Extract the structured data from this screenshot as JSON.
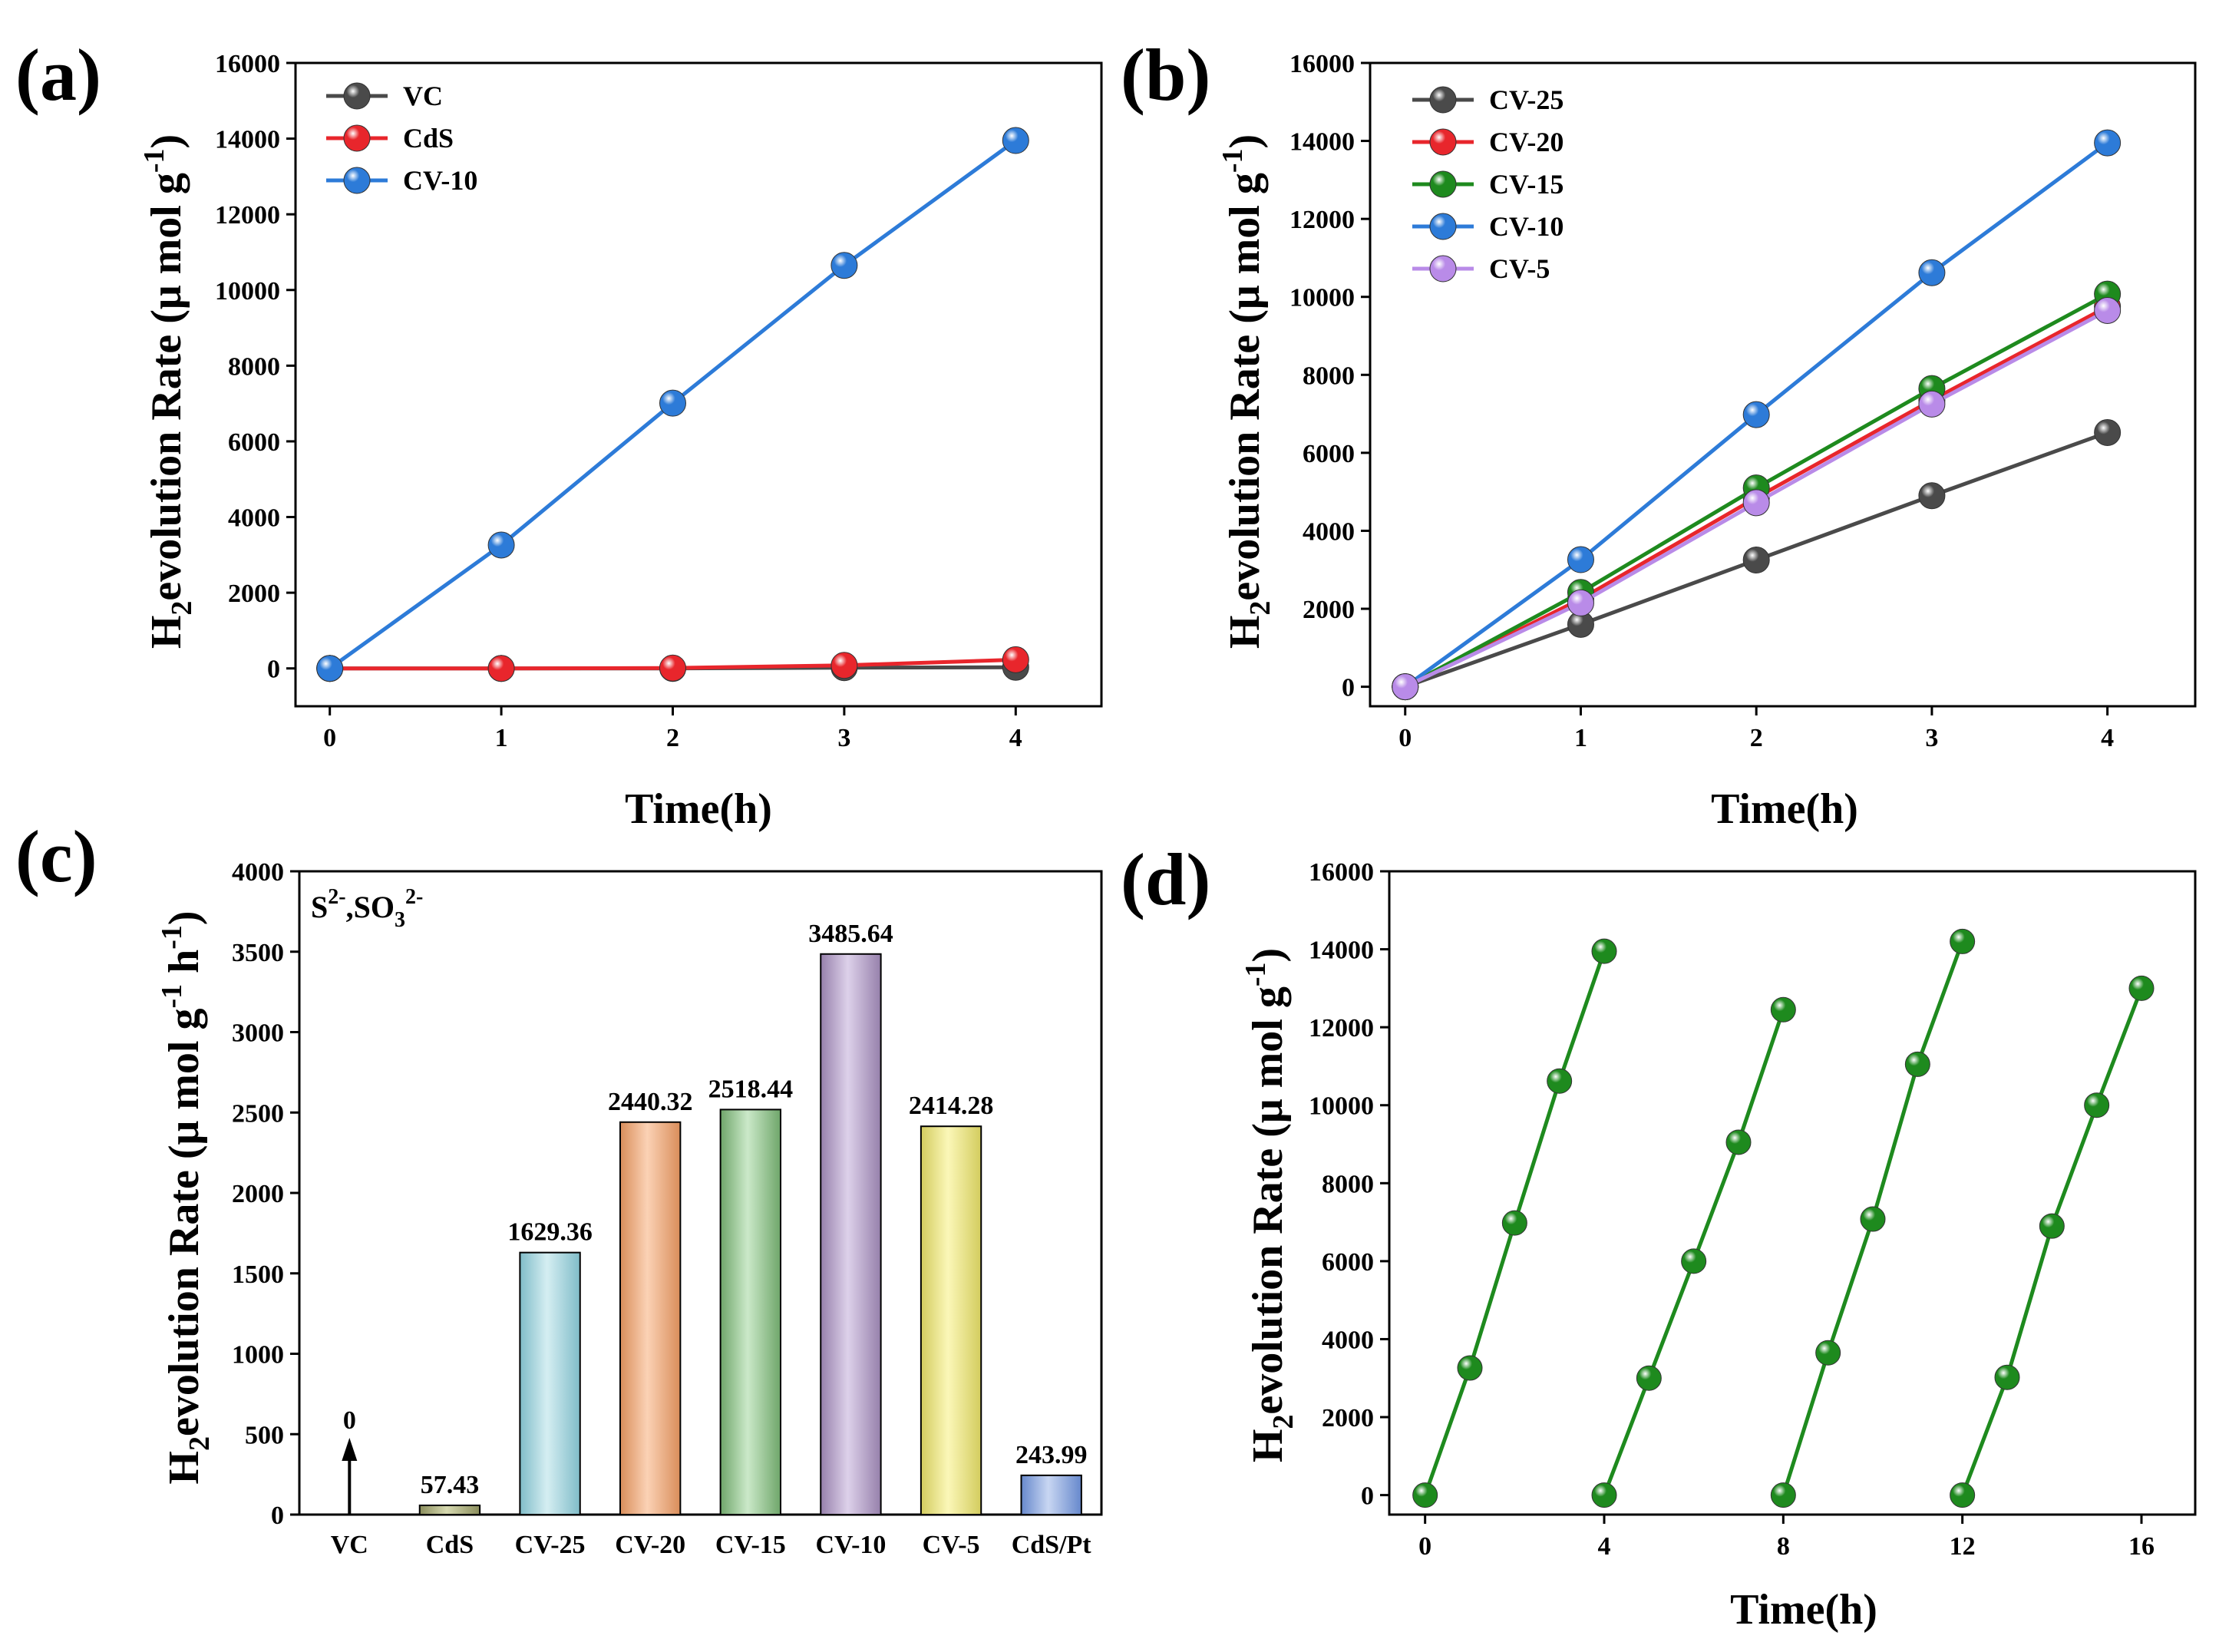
{
  "colors": {
    "VC": "#4a4a4a",
    "CdS": "#e8262c",
    "CV-10": "#2d7bd8",
    "CV-25": "#4a4a4a",
    "CV-20": "#e8262c",
    "CV-15": "#1e8a1e",
    "CV-5": "#b98be8",
    "cycle": "#1e8a1e"
  },
  "chart_data": [
    {
      "panel": "(a)",
      "type": "line",
      "xlabel": "Time(h)",
      "ylabel_main": "evolution Rate (μ mol g",
      "ylabel_h": "H",
      "ylabel_sub": "2",
      "ylabel_sup": "-1",
      "ylabel_close": ")",
      "xlim": [
        -0.2,
        4.5
      ],
      "ylim": [
        -1000,
        16000
      ],
      "xticks": [
        0,
        1,
        2,
        3,
        4
      ],
      "yticks": [
        0,
        2000,
        4000,
        6000,
        8000,
        10000,
        12000,
        14000,
        16000
      ],
      "x": [
        0,
        1,
        2,
        3,
        4
      ],
      "series": [
        {
          "name": "VC",
          "color_key": "VC",
          "values": [
            0,
            0,
            0,
            20,
            30
          ]
        },
        {
          "name": "CdS",
          "color_key": "CdS",
          "values": [
            0,
            0,
            10,
            80,
            230
          ]
        },
        {
          "name": "CV-10",
          "color_key": "CV-10",
          "values": [
            0,
            3260,
            7010,
            10650,
            13950
          ]
        }
      ]
    },
    {
      "panel": "(b)",
      "type": "line",
      "xlabel": "Time(h)",
      "ylabel_main": "evolution Rate (μ mol g",
      "ylabel_h": "H",
      "ylabel_sub": "2",
      "ylabel_sup": "-1",
      "ylabel_close": ")",
      "xlim": [
        -0.2,
        4.5
      ],
      "ylim": [
        -500,
        16000
      ],
      "xticks": [
        0,
        1,
        2,
        3,
        4
      ],
      "yticks": [
        0,
        2000,
        4000,
        6000,
        8000,
        10000,
        12000,
        14000,
        16000
      ],
      "x": [
        0,
        1,
        2,
        3,
        4
      ],
      "series": [
        {
          "name": "CV-25",
          "color_key": "CV-25",
          "values": [
            0,
            1600,
            3250,
            4900,
            6520
          ]
        },
        {
          "name": "CV-20",
          "color_key": "CV-20",
          "values": [
            0,
            2250,
            4850,
            7350,
            9750
          ]
        },
        {
          "name": "CV-15",
          "color_key": "CV-15",
          "values": [
            0,
            2420,
            5100,
            7650,
            10070
          ]
        },
        {
          "name": "CV-10",
          "color_key": "CV-10",
          "values": [
            0,
            3260,
            6980,
            10620,
            13950
          ]
        },
        {
          "name": "CV-5",
          "color_key": "CV-5",
          "values": [
            0,
            2150,
            4720,
            7250,
            9650
          ]
        }
      ]
    },
    {
      "panel": "(c)",
      "type": "bar",
      "xlabel": "",
      "ylabel_main": "evolution Rate (μ mol g",
      "ylabel_h": "H",
      "ylabel_sub": "2",
      "ylabel_sup": "-1",
      "ylabel_mid": " h",
      "ylabel_sup2": "-1",
      "ylabel_close": ")",
      "ylim": [
        0,
        4000
      ],
      "yticks": [
        0,
        500,
        1000,
        1500,
        2000,
        2500,
        3000,
        3500,
        4000
      ],
      "annotation_main": "S",
      "annotation_sup": "2-",
      "annotation_mid": ",SO",
      "annotation_sub": "3",
      "annotation_sup2": "2-",
      "categories": [
        "VC",
        "CdS",
        "CV-25",
        "CV-20",
        "CV-15",
        "CV-10",
        "CV-5",
        "CdS/Pt"
      ],
      "values": [
        0,
        57.43,
        1629.36,
        2440.32,
        2518.44,
        3485.64,
        2414.28,
        243.99
      ],
      "data_labels": [
        "0",
        "57.43",
        "1629.36",
        "2440.32",
        "2518.44",
        "3485.64",
        "2414.28",
        "243.99"
      ],
      "bar_colors": [
        [
          "#ffffff",
          "#ffffff"
        ],
        [
          "#d6d9b0",
          "#8a8d5c"
        ],
        [
          "#d5eef2",
          "#7fbcc8"
        ],
        [
          "#fbd2b5",
          "#d98d5a"
        ],
        [
          "#cbe9c9",
          "#6fa66a"
        ],
        [
          "#ddd1ea",
          "#9680ab"
        ],
        [
          "#fbf7b8",
          "#d3cc5e"
        ],
        [
          "#c8d6f2",
          "#6688cc"
        ]
      ]
    },
    {
      "panel": "(d)",
      "type": "line",
      "xlabel": "Time(h)",
      "ylabel_main": "evolution Rate (μ mol g",
      "ylabel_h": "H",
      "ylabel_sub": "2",
      "ylabel_sup": "-1",
      "ylabel_close": ")",
      "xlim": [
        -0.8,
        17.2
      ],
      "ylim": [
        -500,
        16000
      ],
      "xticks": [
        0,
        4,
        8,
        12,
        16
      ],
      "yticks": [
        0,
        2000,
        4000,
        6000,
        8000,
        10000,
        12000,
        14000,
        16000
      ],
      "cycles": [
        {
          "x": [
            0,
            1,
            2,
            3,
            4
          ],
          "values": [
            0,
            3260,
            6980,
            10620,
            13950
          ]
        },
        {
          "x": [
            4,
            5,
            6,
            7,
            8
          ],
          "values": [
            0,
            3000,
            6000,
            9050,
            12450
          ]
        },
        {
          "x": [
            8,
            9,
            10,
            11,
            12
          ],
          "values": [
            0,
            3650,
            7080,
            11050,
            14200
          ]
        },
        {
          "x": [
            12,
            13,
            14,
            15,
            16
          ],
          "values": [
            0,
            3020,
            6900,
            10000,
            13000
          ]
        }
      ]
    }
  ]
}
